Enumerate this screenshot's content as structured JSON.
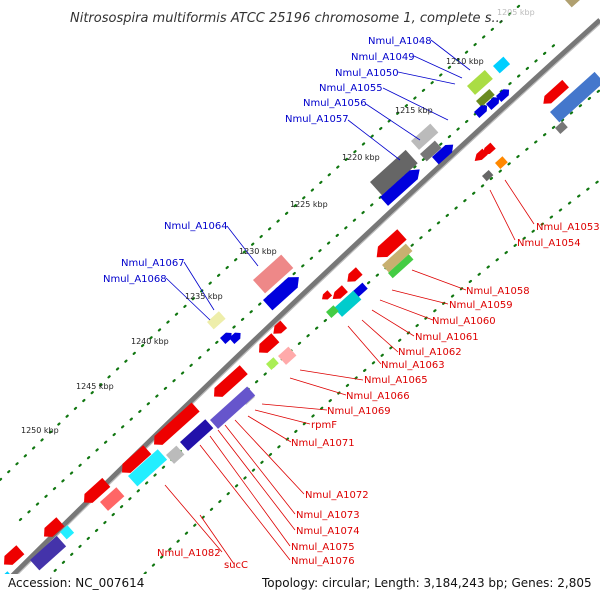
{
  "title": "Nitrosospira multiformis ATCC 25196 chromosome 1, complete s...",
  "footer": {
    "accession": "Accession: NC_007614",
    "summary": "Topology: circular; Length: 3,184,243 bp; Genes: 2,805"
  },
  "colors": {
    "forward_label": "#0000cc",
    "reverse_label": "#dd0000",
    "backbone": "#888888"
  },
  "ticks": [
    "1205 kbp",
    "1210 kbp",
    "1215 kbp",
    "1220 kbp",
    "1225 kbp",
    "1230 kbp",
    "1235 kbp",
    "1240 kbp",
    "1245 kbp",
    "1250 kbp"
  ],
  "genes_forward": [
    "Nmul_A1048",
    "Nmul_A1049",
    "Nmul_A1050",
    "Nmul_A1055",
    "Nmul_A1056",
    "Nmul_A1057",
    "Nmul_A1064",
    "Nmul_A1067",
    "Nmul_A1068"
  ],
  "genes_reverse": [
    "Nmul_A1053",
    "Nmul_A1054",
    "Nmul_A1058",
    "Nmul_A1059",
    "Nmul_A1060",
    "Nmul_A1061",
    "Nmul_A1062",
    "Nmul_A1063",
    "Nmul_A1065",
    "Nmul_A1066",
    "Nmul_A1069",
    "rpmF",
    "Nmul_A1071",
    "Nmul_A1072",
    "Nmul_A1073",
    "Nmul_A1074",
    "Nmul_A1075",
    "Nmul_A1076",
    "Nmul_A1082",
    "sucC"
  ]
}
